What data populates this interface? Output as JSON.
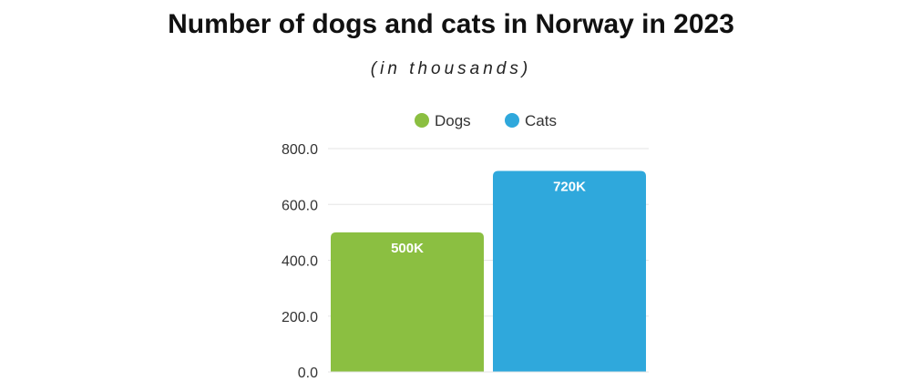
{
  "chart_data": {
    "type": "bar",
    "title": "Number of dogs and cats in Norway in 2023",
    "subtitle": "(in thousands)",
    "categories": [
      "Dogs",
      "Cats"
    ],
    "values": [
      500,
      720
    ],
    "data_labels": [
      "500K",
      "720K"
    ],
    "series": [
      {
        "name": "Dogs",
        "values": [
          500,
          null
        ],
        "color": "#8bbf41"
      },
      {
        "name": "Cats",
        "values": [
          null,
          720
        ],
        "color": "#2fa8dc"
      }
    ],
    "yticks": [
      "0.0",
      "200.0",
      "400.0",
      "600.0",
      "800.0"
    ],
    "ylim": [
      0,
      800
    ],
    "xlabel": "",
    "ylabel": "",
    "legend": "top-center",
    "grid": true
  }
}
